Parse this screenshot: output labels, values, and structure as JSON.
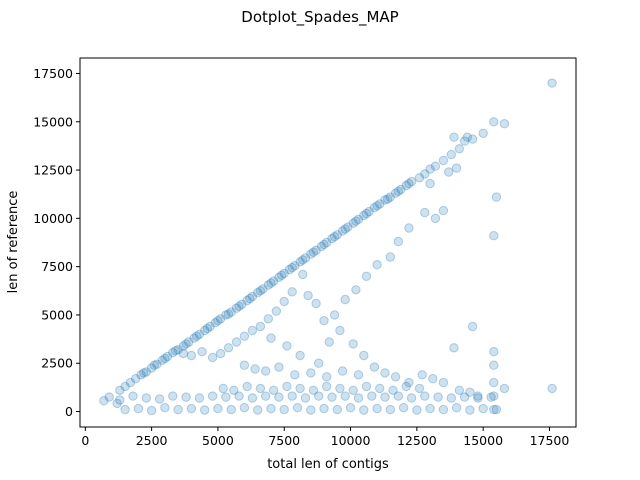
{
  "chart_data": {
    "type": "scatter",
    "title": "Dotplot_Spades_MAP",
    "xlabel": "total len of contigs",
    "ylabel": "len of reference",
    "xlim": [
      -200,
      18500
    ],
    "ylim": [
      -800,
      18300
    ],
    "xticks": [
      "0",
      "2500",
      "5000",
      "7500",
      "10000",
      "12500",
      "15000",
      "17500"
    ],
    "yticks": [
      "0",
      "2500",
      "5000",
      "7500",
      "10000",
      "12500",
      "15000",
      "17500"
    ],
    "grid": false,
    "marker_color": "#1f77b4",
    "marker_alpha": 0.22,
    "series": [
      {
        "values_note": "",
        "points": [
          [
            700,
            560
          ],
          [
            900,
            750
          ],
          [
            1200,
            420
          ],
          [
            1300,
            1100
          ],
          [
            1500,
            1300
          ],
          [
            1700,
            1500
          ],
          [
            1900,
            1700
          ],
          [
            2100,
            1900
          ],
          [
            2300,
            2050
          ],
          [
            2500,
            2250
          ],
          [
            2700,
            2450
          ],
          [
            2900,
            2650
          ],
          [
            3100,
            2850
          ],
          [
            3300,
            3050
          ],
          [
            3500,
            3200
          ],
          [
            3700,
            3400
          ],
          [
            3900,
            3600
          ],
          [
            4100,
            3800
          ],
          [
            4300,
            4000
          ],
          [
            4500,
            4200
          ],
          [
            4700,
            4400
          ],
          [
            4900,
            4600
          ],
          [
            5100,
            4800
          ],
          [
            5300,
            5000
          ],
          [
            5500,
            5150
          ],
          [
            5700,
            5350
          ],
          [
            5900,
            5550
          ],
          [
            6100,
            5750
          ],
          [
            6300,
            5950
          ],
          [
            6500,
            6150
          ],
          [
            6700,
            6350
          ],
          [
            6900,
            6550
          ],
          [
            7100,
            6750
          ],
          [
            7300,
            6950
          ],
          [
            7500,
            7150
          ],
          [
            7700,
            7350
          ],
          [
            7900,
            7550
          ],
          [
            8100,
            7750
          ],
          [
            8300,
            7950
          ],
          [
            8500,
            8150
          ],
          [
            8700,
            8350
          ],
          [
            8900,
            8550
          ],
          [
            9100,
            8750
          ],
          [
            9300,
            8950
          ],
          [
            9500,
            9150
          ],
          [
            9700,
            9350
          ],
          [
            9900,
            9550
          ],
          [
            10100,
            9750
          ],
          [
            10300,
            9950
          ],
          [
            10500,
            10150
          ],
          [
            10700,
            10350
          ],
          [
            10900,
            10550
          ],
          [
            11100,
            10750
          ],
          [
            11300,
            10950
          ],
          [
            11500,
            11100
          ],
          [
            11700,
            11300
          ],
          [
            11900,
            11500
          ],
          [
            12100,
            11700
          ],
          [
            12300,
            11900
          ],
          [
            12600,
            12100
          ],
          [
            12800,
            12300
          ],
          [
            13000,
            12550
          ],
          [
            13200,
            12700
          ],
          [
            13500,
            13000
          ],
          [
            13800,
            13300
          ],
          [
            14100,
            13600
          ],
          [
            14300,
            14000
          ],
          [
            14600,
            14100
          ],
          [
            15000,
            14400
          ],
          [
            15400,
            15000
          ],
          [
            15800,
            14900
          ],
          [
            17600,
            17000
          ],
          [
            2200,
            2000
          ],
          [
            2600,
            2400
          ],
          [
            3000,
            2750
          ],
          [
            3400,
            3150
          ],
          [
            3800,
            3500
          ],
          [
            4200,
            3900
          ],
          [
            4600,
            4300
          ],
          [
            5000,
            4700
          ],
          [
            5400,
            5050
          ],
          [
            5800,
            5450
          ],
          [
            6200,
            5850
          ],
          [
            6600,
            6250
          ],
          [
            7000,
            6650
          ],
          [
            7400,
            7050
          ],
          [
            7800,
            7450
          ],
          [
            8200,
            7850
          ],
          [
            8600,
            8250
          ],
          [
            9000,
            8650
          ],
          [
            9400,
            9050
          ],
          [
            9800,
            9450
          ],
          [
            10200,
            9850
          ],
          [
            10600,
            10250
          ],
          [
            11000,
            10650
          ],
          [
            11400,
            11000
          ],
          [
            11800,
            11400
          ],
          [
            12200,
            11800
          ],
          [
            13900,
            14200
          ],
          [
            14400,
            14200
          ],
          [
            15500,
            11100
          ],
          [
            15400,
            9100
          ],
          [
            15400,
            3100
          ],
          [
            15400,
            2400
          ],
          [
            15400,
            1500
          ],
          [
            15400,
            800
          ],
          [
            15400,
            100
          ],
          [
            14600,
            4400
          ],
          [
            13900,
            3300
          ],
          [
            13500,
            10400
          ],
          [
            13200,
            10000
          ],
          [
            13000,
            11800
          ],
          [
            13700,
            12400
          ],
          [
            14000,
            12600
          ],
          [
            12800,
            10300
          ],
          [
            12200,
            9500
          ],
          [
            11800,
            8800
          ],
          [
            11500,
            8000
          ],
          [
            11000,
            7600
          ],
          [
            10600,
            7000
          ],
          [
            10200,
            6300
          ],
          [
            9800,
            5800
          ],
          [
            9400,
            5000
          ],
          [
            9000,
            4700
          ],
          [
            8700,
            5600
          ],
          [
            8400,
            6000
          ],
          [
            8200,
            7100
          ],
          [
            7800,
            6200
          ],
          [
            7500,
            5700
          ],
          [
            7200,
            5200
          ],
          [
            6900,
            4800
          ],
          [
            6600,
            4400
          ],
          [
            6300,
            4200
          ],
          [
            6000,
            3900
          ],
          [
            5700,
            3600
          ],
          [
            5400,
            3300
          ],
          [
            5100,
            3000
          ],
          [
            4800,
            2800
          ],
          [
            4400,
            3100
          ],
          [
            4000,
            2900
          ],
          [
            3700,
            3000
          ],
          [
            7000,
            3800
          ],
          [
            7600,
            3400
          ],
          [
            8100,
            2900
          ],
          [
            8800,
            2500
          ],
          [
            9200,
            3600
          ],
          [
            9600,
            4200
          ],
          [
            10100,
            3500
          ],
          [
            10500,
            2900
          ],
          [
            10900,
            2300
          ],
          [
            11300,
            2000
          ],
          [
            11700,
            1800
          ],
          [
            12200,
            1500
          ],
          [
            12700,
            1900
          ],
          [
            13100,
            1700
          ],
          [
            13500,
            1500
          ],
          [
            14100,
            1100
          ],
          [
            14500,
            1000
          ],
          [
            14800,
            800
          ],
          [
            6000,
            2400
          ],
          [
            6400,
            2200
          ],
          [
            6800,
            2100
          ],
          [
            7300,
            2300
          ],
          [
            7900,
            1900
          ],
          [
            8500,
            2000
          ],
          [
            9100,
            1800
          ],
          [
            9700,
            2100
          ],
          [
            10300,
            1900
          ],
          [
            1300,
            600
          ],
          [
            1800,
            800
          ],
          [
            2300,
            700
          ],
          [
            2800,
            650
          ],
          [
            3300,
            800
          ],
          [
            3800,
            750
          ],
          [
            4300,
            700
          ],
          [
            4800,
            800
          ],
          [
            5300,
            750
          ],
          [
            5800,
            800
          ],
          [
            6300,
            700
          ],
          [
            6800,
            800
          ],
          [
            7300,
            750
          ],
          [
            7800,
            800
          ],
          [
            8300,
            700
          ],
          [
            8800,
            800
          ],
          [
            9300,
            750
          ],
          [
            9800,
            800
          ],
          [
            10300,
            700
          ],
          [
            10800,
            800
          ],
          [
            11300,
            750
          ],
          [
            11800,
            800
          ],
          [
            12300,
            700
          ],
          [
            12800,
            800
          ],
          [
            13300,
            750
          ],
          [
            13800,
            700
          ],
          [
            14300,
            750
          ],
          [
            14800,
            700
          ],
          [
            15300,
            750
          ],
          [
            15800,
            1200
          ],
          [
            17600,
            1200
          ],
          [
            1500,
            100
          ],
          [
            2000,
            150
          ],
          [
            2500,
            50
          ],
          [
            3000,
            200
          ],
          [
            3500,
            100
          ],
          [
            4000,
            150
          ],
          [
            4500,
            80
          ],
          [
            5000,
            150
          ],
          [
            5500,
            100
          ],
          [
            6000,
            200
          ],
          [
            6500,
            80
          ],
          [
            7000,
            150
          ],
          [
            7500,
            100
          ],
          [
            8000,
            200
          ],
          [
            8500,
            80
          ],
          [
            9000,
            150
          ],
          [
            9500,
            100
          ],
          [
            10000,
            200
          ],
          [
            10500,
            80
          ],
          [
            11000,
            150
          ],
          [
            11500,
            100
          ],
          [
            12000,
            200
          ],
          [
            12500,
            80
          ],
          [
            13000,
            150
          ],
          [
            13500,
            100
          ],
          [
            14000,
            200
          ],
          [
            14500,
            80
          ],
          [
            15000,
            150
          ],
          [
            15500,
            100
          ],
          [
            5200,
            1200
          ],
          [
            5600,
            1100
          ],
          [
            6100,
            1300
          ],
          [
            6600,
            1200
          ],
          [
            7100,
            1100
          ],
          [
            7600,
            1300
          ],
          [
            8100,
            1200
          ],
          [
            8600,
            1100
          ],
          [
            9100,
            1300
          ],
          [
            9600,
            1200
          ],
          [
            10100,
            1100
          ],
          [
            10600,
            1300
          ],
          [
            11100,
            1200
          ],
          [
            11600,
            1100
          ],
          [
            12100,
            1300
          ],
          [
            12600,
            1200
          ]
        ]
      }
    ]
  }
}
